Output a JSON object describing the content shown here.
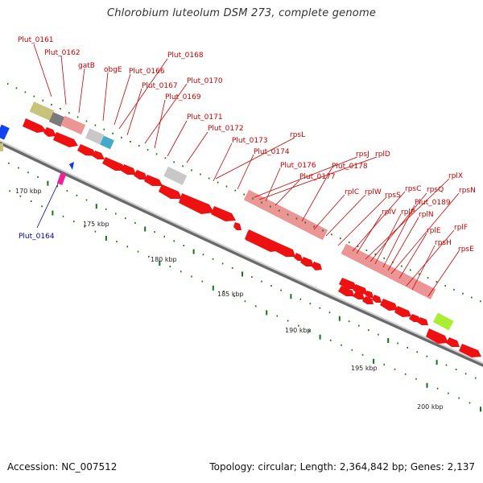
{
  "title": "Chlorobium luteolum DSM 273, complete genome",
  "footer": {
    "accession": "Accession: NC_007512",
    "topology": "Topology: circular; Length: 2,364,842 bp; Genes: 2,137"
  },
  "colors": {
    "cds": "#ee1111",
    "rrna": "#ec9595",
    "trna_like": "#f3b6b6",
    "olive": "#c8c37a",
    "gray": "#c8c8c8",
    "dark_gray": "#7a7a7a",
    "cyan": "#44aacc",
    "lime": "#aaee33",
    "label": "#cc0000",
    "label_neg": "#0000aa",
    "tick": "#117711"
  },
  "scale_labels": [
    "170 kbp",
    "175 kbp",
    "180 kbp",
    "185 kbp",
    "190 kbp",
    "195 kbp",
    "200 kbp"
  ],
  "gene_labels": [
    "Plut_0161",
    "Plut_0162",
    "gatB",
    "obgE",
    "Plut_0166",
    "Plut_0168",
    "Plut_0167",
    "Plut_0170",
    "Plut_0169",
    "Plut_0171",
    "Plut_0172",
    "rpsL",
    "Plut_0173",
    "Plut_0174",
    "rpsJ",
    "rplD",
    "Plut_0176",
    "Plut_0178",
    "Plut_0177",
    "rplC",
    "rplW",
    "rpsS",
    "rpsC",
    "rplX",
    "rpsQ",
    "rplV",
    "rplP",
    "Plut_0189",
    "rpsN",
    "rplN",
    "rplE",
    "rplF",
    "rpsH",
    "rpsE"
  ],
  "neg_labels": [
    "Plut_0164"
  ]
}
